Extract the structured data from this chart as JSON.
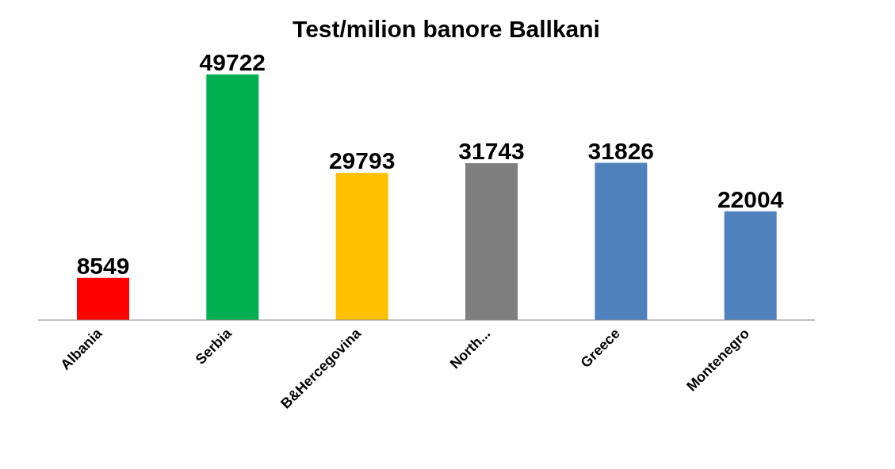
{
  "chart_data": {
    "type": "bar",
    "title": "Test/milion banore Ballkani",
    "categories": [
      "Albania",
      "Serbia",
      "B&Hercegovina",
      "North...",
      "Greece",
      "Montenegro"
    ],
    "values": [
      8549,
      49722,
      29793,
      31743,
      31826,
      22004
    ],
    "colors": [
      "#ff0000",
      "#00b050",
      "#ffc000",
      "#7f7f7f",
      "#4f81bd",
      "#4f81bd"
    ],
    "data_labels": true,
    "grid": false,
    "legend": false
  }
}
